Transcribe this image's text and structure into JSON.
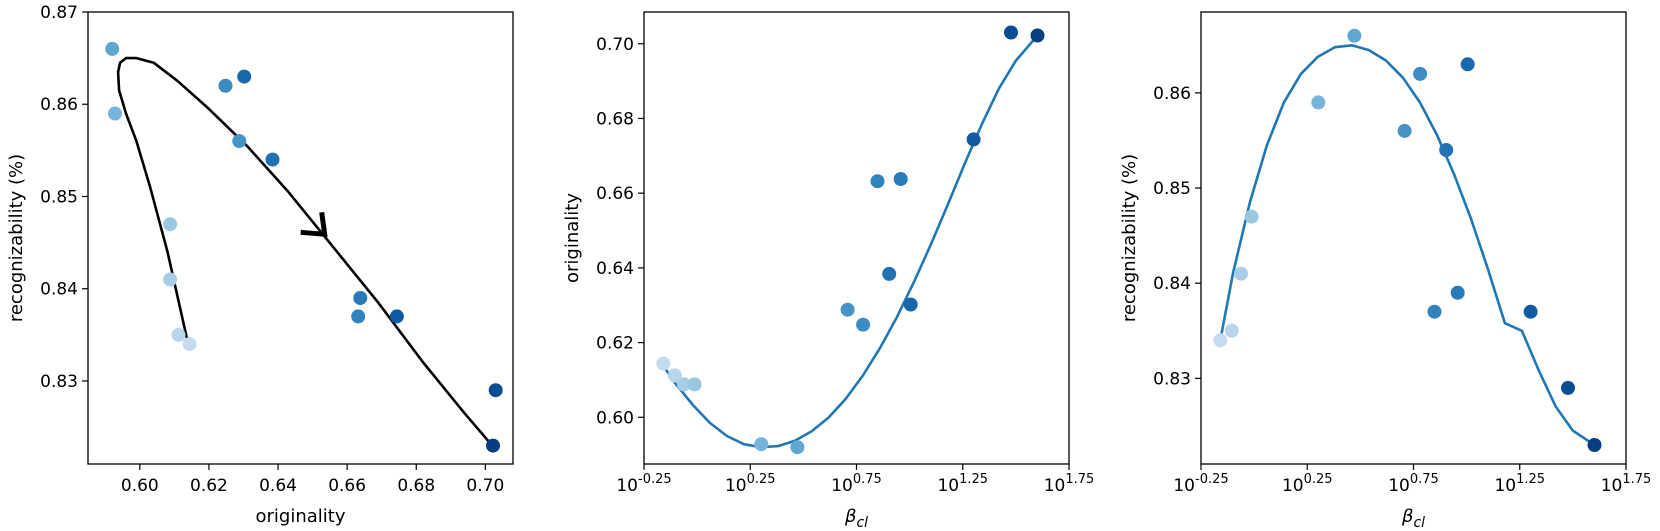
{
  "chart_data": [
    {
      "type": "scatter",
      "xlabel": "originality",
      "ylabel": "recognizability (%)",
      "xlim": [
        0.585,
        0.708
      ],
      "ylim": [
        0.821,
        0.87
      ],
      "xticks": [
        0.6,
        0.62,
        0.64,
        0.66,
        0.68,
        0.7
      ],
      "xtick_labels": [
        "0.60",
        "0.62",
        "0.64",
        "0.66",
        "0.68",
        "0.70"
      ],
      "yticks": [
        0.83,
        0.84,
        0.85,
        0.86,
        0.87
      ],
      "ytick_labels": [
        "0.83",
        "0.84",
        "0.85",
        "0.86",
        "0.87"
      ],
      "points": [
        {
          "x": 0.6144,
          "y": 0.834,
          "color": "#c6dbef"
        },
        {
          "x": 0.6112,
          "y": 0.835,
          "color": "#b8d5ea"
        },
        {
          "x": 0.6088,
          "y": 0.841,
          "color": "#a8cde4"
        },
        {
          "x": 0.6088,
          "y": 0.847,
          "color": "#9ac8e0"
        },
        {
          "x": 0.5928,
          "y": 0.859,
          "color": "#78b3d9"
        },
        {
          "x": 0.592,
          "y": 0.866,
          "color": "#62a6d2"
        },
        {
          "x": 0.6288,
          "y": 0.856,
          "color": "#4793c6"
        },
        {
          "x": 0.6248,
          "y": 0.862,
          "color": "#3d8bc2"
        },
        {
          "x": 0.6632,
          "y": 0.837,
          "color": "#3282be"
        },
        {
          "x": 0.6638,
          "y": 0.839,
          "color": "#2a7ab9"
        },
        {
          "x": 0.6384,
          "y": 0.854,
          "color": "#2171b5"
        },
        {
          "x": 0.6302,
          "y": 0.863,
          "color": "#1967ad"
        },
        {
          "x": 0.6744,
          "y": 0.837,
          "color": "#105ba4"
        },
        {
          "x": 0.703,
          "y": 0.829,
          "color": "#0a4d92"
        },
        {
          "x": 0.7022,
          "y": 0.823,
          "color": "#083d7f"
        }
      ],
      "curve": {
        "color": "#000000",
        "x": [
          0.614,
          0.608,
          0.603,
          0.599,
          0.596,
          0.594,
          0.5937,
          0.5943,
          0.596,
          0.599,
          0.604,
          0.611,
          0.62,
          0.631,
          0.643,
          0.656,
          0.669,
          0.682,
          0.694,
          0.702
        ],
        "y": [
          0.834,
          0.844,
          0.851,
          0.856,
          0.859,
          0.8615,
          0.8635,
          0.8645,
          0.865,
          0.865,
          0.8645,
          0.8625,
          0.8595,
          0.8555,
          0.8505,
          0.8445,
          0.8385,
          0.832,
          0.8265,
          0.823
        ]
      },
      "arrow": {
        "x": 0.6535,
        "y": 0.8459,
        "color": "#000000"
      }
    },
    {
      "type": "scatter",
      "xlabel": "βcl",
      "ylabel": "originality",
      "x_scale": "log10",
      "xlim": [
        -0.25,
        1.75
      ],
      "ylim": [
        0.5875,
        0.7085
      ],
      "xticks": [
        -0.25,
        0.25,
        0.75,
        1.25,
        1.75
      ],
      "xtick_labels": [
        "10^-0.25",
        "10^0.25",
        "10^0.75",
        "10^1.25",
        "10^1.75"
      ],
      "yticks": [
        0.6,
        0.62,
        0.64,
        0.66,
        0.68,
        0.7
      ],
      "ytick_labels": [
        "0.60",
        "0.62",
        "0.64",
        "0.66",
        "0.68",
        "0.70"
      ],
      "points": [
        {
          "log_x": -0.159,
          "y": 0.6144,
          "color": "#c6dbef"
        },
        {
          "log_x": -0.105,
          "y": 0.6112,
          "color": "#b8d5ea"
        },
        {
          "log_x": -0.062,
          "y": 0.6088,
          "color": "#a8cde4"
        },
        {
          "log_x": -0.012,
          "y": 0.6088,
          "color": "#9ac8e0"
        },
        {
          "log_x": 0.302,
          "y": 0.5928,
          "color": "#78b3d9"
        },
        {
          "log_x": 0.472,
          "y": 0.592,
          "color": "#62a6d2"
        },
        {
          "log_x": 0.708,
          "y": 0.6288,
          "color": "#4793c6"
        },
        {
          "log_x": 0.781,
          "y": 0.6248,
          "color": "#3d8bc2"
        },
        {
          "log_x": 0.849,
          "y": 0.6632,
          "color": "#3282be"
        },
        {
          "log_x": 0.958,
          "y": 0.6638,
          "color": "#2a7ab9"
        },
        {
          "log_x": 0.904,
          "y": 0.6384,
          "color": "#2171b5"
        },
        {
          "log_x": 1.005,
          "y": 0.6302,
          "color": "#1967ad"
        },
        {
          "log_x": 1.301,
          "y": 0.6744,
          "color": "#105ba4"
        },
        {
          "log_x": 1.477,
          "y": 0.703,
          "color": "#0a4d92"
        },
        {
          "log_x": 1.602,
          "y": 0.7022,
          "color": "#083d7f"
        }
      ],
      "curve": {
        "color": "#1f77b4",
        "x": [
          -0.159,
          -0.1,
          -0.02,
          0.06,
          0.14,
          0.22,
          0.3,
          0.38,
          0.46,
          0.54,
          0.62,
          0.7,
          0.78,
          0.86,
          0.94,
          1.02,
          1.1,
          1.18,
          1.26,
          1.34,
          1.42,
          1.5,
          1.602
        ],
        "y": [
          0.6138,
          0.6089,
          0.6033,
          0.5985,
          0.595,
          0.5928,
          0.592,
          0.5923,
          0.5937,
          0.5963,
          0.6,
          0.605,
          0.6112,
          0.6185,
          0.6268,
          0.6362,
          0.6463,
          0.657,
          0.668,
          0.6785,
          0.688,
          0.6955,
          0.7022
        ]
      }
    },
    {
      "type": "scatter",
      "xlabel": "βcl",
      "ylabel": "recognizability (%)",
      "x_scale": "log10",
      "xlim": [
        -0.25,
        1.75
      ],
      "ylim": [
        0.821,
        0.8685
      ],
      "xticks": [
        -0.25,
        0.25,
        0.75,
        1.25,
        1.75
      ],
      "xtick_labels": [
        "10^-0.25",
        "10^0.25",
        "10^0.75",
        "10^1.25",
        "10^1.75"
      ],
      "yticks": [
        0.83,
        0.84,
        0.85,
        0.86
      ],
      "ytick_labels": [
        "0.83",
        "0.84",
        "0.85",
        "0.86"
      ],
      "points": [
        {
          "log_x": -0.159,
          "y": 0.834,
          "color": "#c6dbef"
        },
        {
          "log_x": -0.105,
          "y": 0.835,
          "color": "#b8d5ea"
        },
        {
          "log_x": -0.062,
          "y": 0.841,
          "color": "#a8cde4"
        },
        {
          "log_x": -0.012,
          "y": 0.847,
          "color": "#9ac8e0"
        },
        {
          "log_x": 0.302,
          "y": 0.859,
          "color": "#78b3d9"
        },
        {
          "log_x": 0.472,
          "y": 0.866,
          "color": "#62a6d2"
        },
        {
          "log_x": 0.708,
          "y": 0.856,
          "color": "#4793c6"
        },
        {
          "log_x": 0.781,
          "y": 0.862,
          "color": "#3d8bc2"
        },
        {
          "log_x": 0.849,
          "y": 0.837,
          "color": "#3282be"
        },
        {
          "log_x": 0.958,
          "y": 0.839,
          "color": "#2a7ab9"
        },
        {
          "log_x": 0.904,
          "y": 0.854,
          "color": "#2171b5"
        },
        {
          "log_x": 1.005,
          "y": 0.863,
          "color": "#1967ad"
        },
        {
          "log_x": 1.301,
          "y": 0.837,
          "color": "#105ba4"
        },
        {
          "log_x": 1.477,
          "y": 0.829,
          "color": "#0a4d92"
        },
        {
          "log_x": 1.602,
          "y": 0.823,
          "color": "#083d7f"
        }
      ],
      "curve": {
        "color": "#1f77b4",
        "x": [
          -0.159,
          -0.1,
          -0.02,
          0.06,
          0.14,
          0.22,
          0.3,
          0.38,
          0.46,
          0.54,
          0.62,
          0.7,
          0.78,
          0.86,
          0.94,
          1.02,
          1.1,
          1.18,
          1.26,
          1.34,
          1.42,
          1.5,
          1.602
        ],
        "y": [
          0.834,
          0.841,
          0.8485,
          0.8545,
          0.859,
          0.862,
          0.8638,
          0.8648,
          0.865,
          0.8645,
          0.8634,
          0.8616,
          0.859,
          0.8556,
          0.8515,
          0.8468,
          0.8415,
          0.8358,
          0.835,
          0.8308,
          0.827,
          0.8245,
          0.823
        ]
      }
    }
  ]
}
